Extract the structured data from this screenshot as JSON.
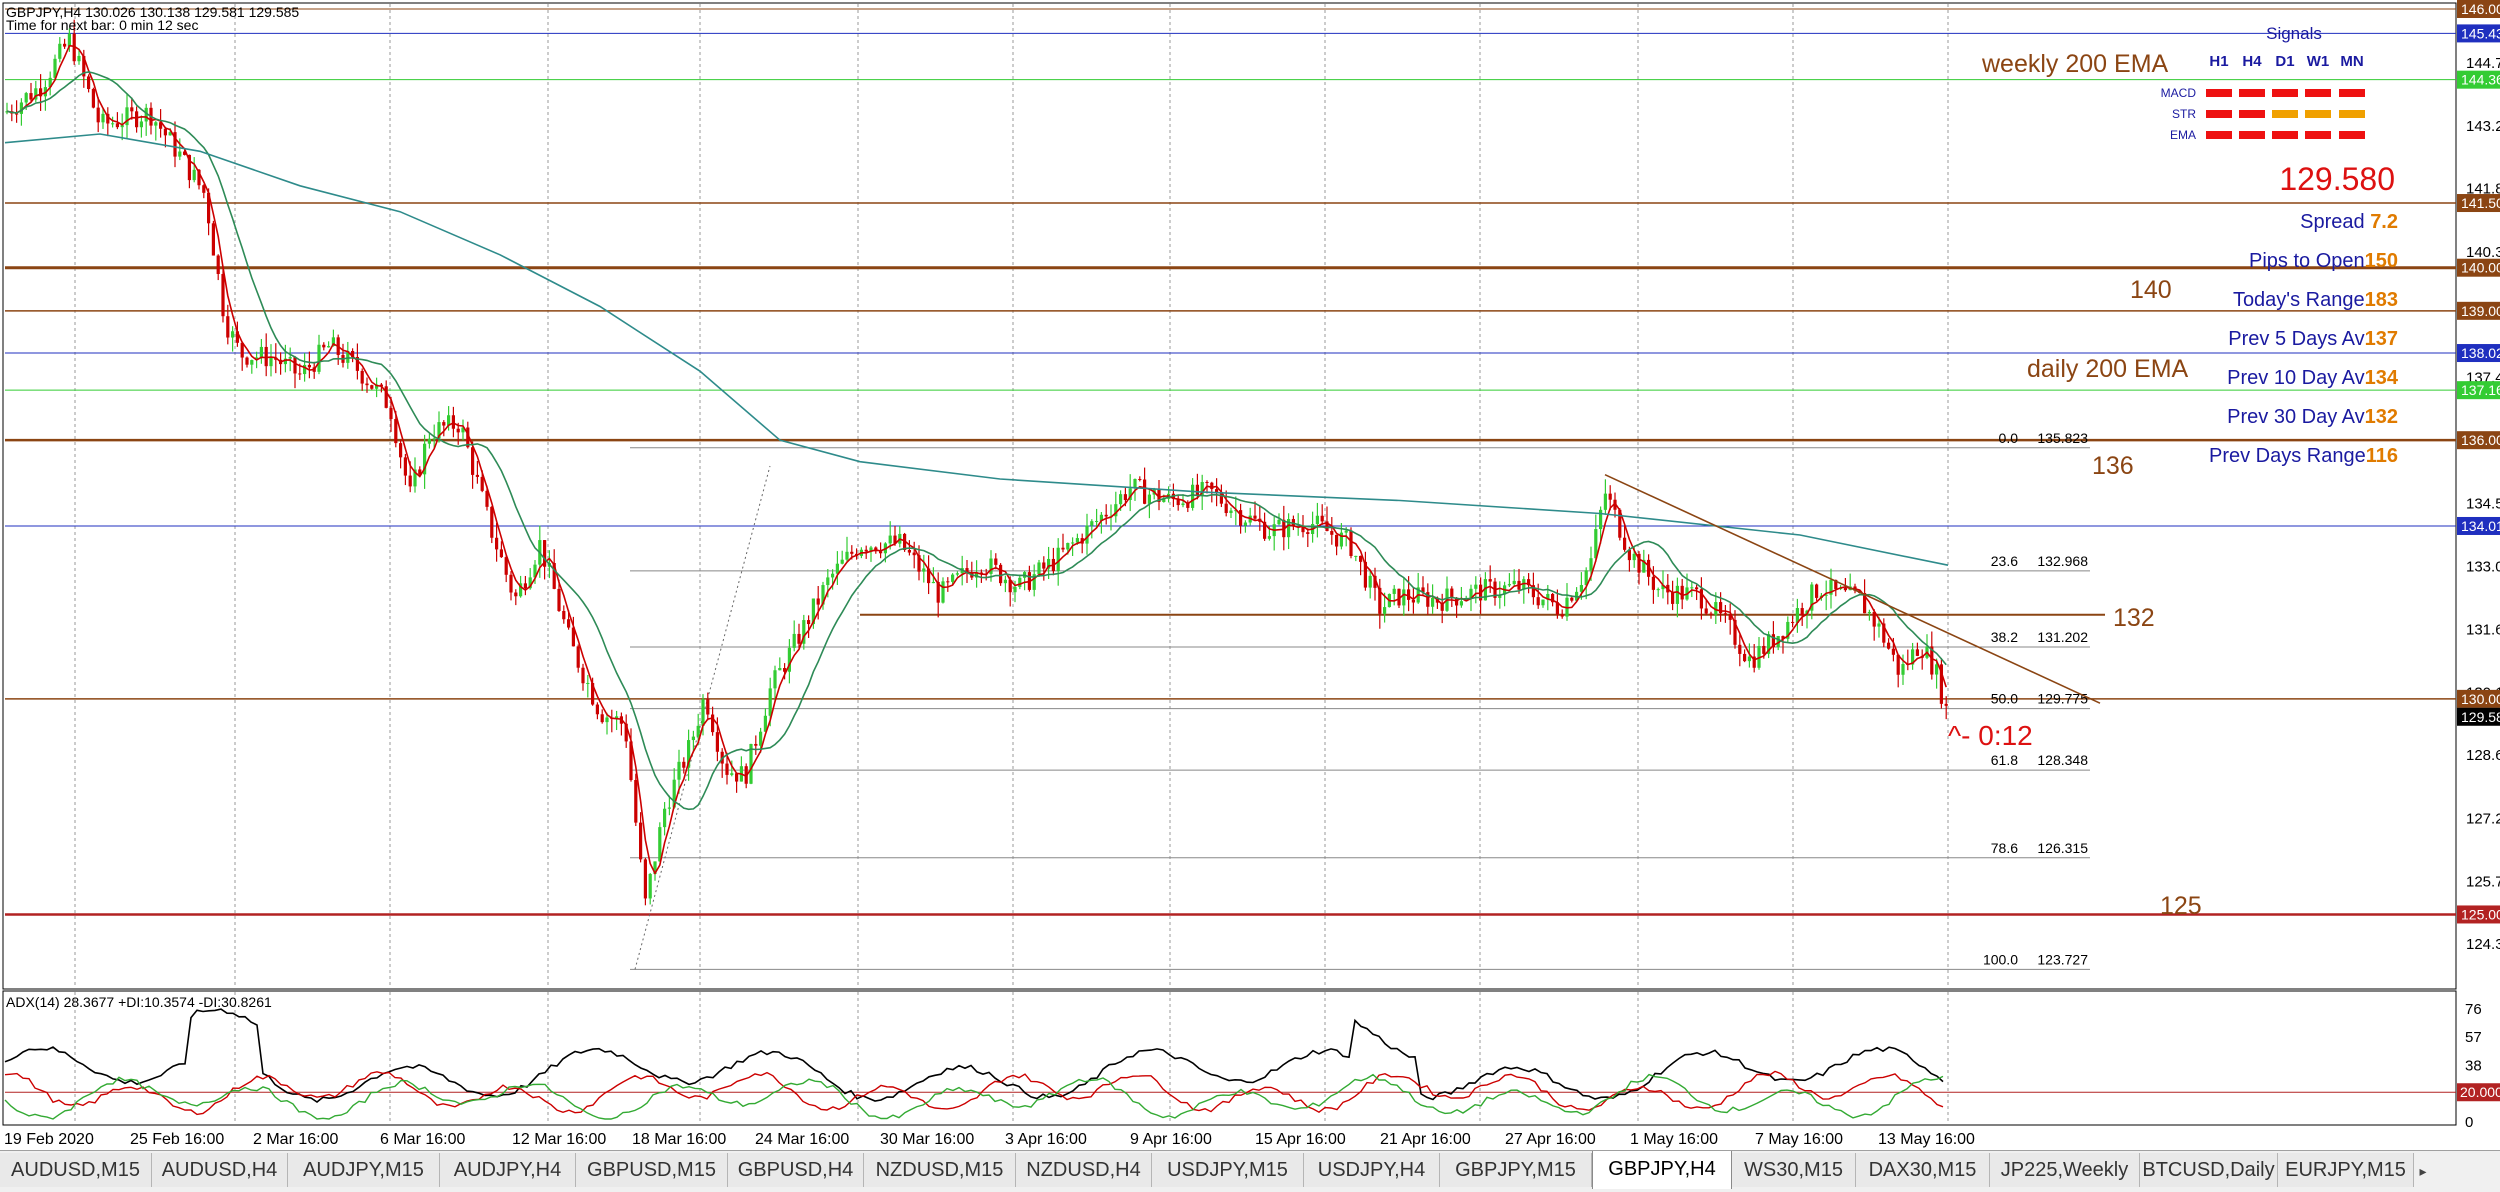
{
  "header": {
    "symbol_line": "GBPJPY,H4  130.026 130.138 129.581 129.585",
    "timer_line": "Time for next bar: 0 min 12 sec"
  },
  "annotations": {
    "weekly_ema": "weekly 200 EMA",
    "daily_ema": "daily 200 EMA",
    "lvl_140": "140",
    "lvl_136": "136",
    "lvl_132": "132",
    "lvl_125": "125",
    "countdown": "^- 0:12"
  },
  "signals": {
    "title": "Signals",
    "timeframes": [
      "H1",
      "H4",
      "D1",
      "W1",
      "MN"
    ],
    "rows": [
      {
        "label": "MACD",
        "states": [
          "red",
          "red",
          "red",
          "red",
          "red"
        ]
      },
      {
        "label": "STR",
        "states": [
          "red",
          "red",
          "orange",
          "orange",
          "orange"
        ]
      },
      {
        "label": "EMA",
        "states": [
          "red",
          "red",
          "red",
          "red",
          "red"
        ]
      }
    ],
    "price": "129.580",
    "stats": [
      {
        "label": "Spread ",
        "value": "7.2",
        "value_color": "#e07b00"
      },
      {
        "label": "Pips to Open",
        "value": "150",
        "value_color": "#e07b00"
      },
      {
        "label": "Today's Range",
        "value": "183",
        "value_color": "#e07b00"
      },
      {
        "label": "Prev 5 Days Av",
        "value": "137",
        "value_color": "#e07b00"
      },
      {
        "label": "Prev 10 Day Av",
        "value": "134",
        "value_color": "#e07b00"
      },
      {
        "label": "Prev 30 Day Av",
        "value": "132",
        "value_color": "#e07b00"
      },
      {
        "label": "Prev Days Range",
        "value": "116",
        "value_color": "#e07b00"
      }
    ]
  },
  "price_axis": {
    "ticks": [
      "144.745",
      "143.290",
      "141.835",
      "140.365",
      "137.455",
      "134.530",
      "133.075",
      "131.605",
      "130.150",
      "128.695",
      "127.225",
      "125.770",
      "124.315"
    ],
    "tags": [
      {
        "text": "146.000",
        "bg": "#8b4513",
        "fg": "#ffffff"
      },
      {
        "text": "145.434",
        "bg": "#1f2fbf",
        "fg": "#ffffff"
      },
      {
        "text": "144.361",
        "bg": "#33cc33",
        "fg": "#ffffff"
      },
      {
        "text": "141.500",
        "bg": "#8b4513",
        "fg": "#ffffff"
      },
      {
        "text": "140.000",
        "bg": "#8b4513",
        "fg": "#ffffff"
      },
      {
        "text": "139.000",
        "bg": "#8b4513",
        "fg": "#ffffff"
      },
      {
        "text": "138.021",
        "bg": "#1f2fbf",
        "fg": "#ffffff"
      },
      {
        "text": "137.160",
        "bg": "#33cc33",
        "fg": "#ffffff"
      },
      {
        "text": "136.000",
        "bg": "#8b4513",
        "fg": "#ffffff"
      },
      {
        "text": "134.010",
        "bg": "#1f2fbf",
        "fg": "#ffffff"
      },
      {
        "text": "130.000",
        "bg": "#8b4513",
        "fg": "#ffffff"
      },
      {
        "text": "129.585",
        "bg": "#000000",
        "fg": "#ffffff"
      },
      {
        "text": "125.000",
        "bg": "#b22222",
        "fg": "#ffffff"
      }
    ]
  },
  "fibonacci": [
    {
      "level": "0.0",
      "price": "135.823"
    },
    {
      "level": "23.6",
      "price": "132.968"
    },
    {
      "level": "38.2",
      "price": "131.202"
    },
    {
      "level": "50.0",
      "price": "129.775"
    },
    {
      "level": "61.8",
      "price": "128.348"
    },
    {
      "level": "78.6",
      "price": "126.315"
    },
    {
      "level": "100.0",
      "price": "123.727"
    }
  ],
  "adx": {
    "label": "ADX(14) 28.3677 +DI:10.3574 -DI:30.8261",
    "ticks": [
      "76",
      "57",
      "38",
      "0"
    ],
    "tag": "20.0000"
  },
  "time_axis": [
    "19 Feb 2020",
    "25 Feb 16:00",
    "2 Mar 16:00",
    "6 Mar 16:00",
    "12 Mar 16:00",
    "18 Mar 16:00",
    "24 Mar 16:00",
    "30 Mar 16:00",
    "3 Apr 16:00",
    "9 Apr 16:00",
    "15 Apr 16:00",
    "21 Apr 16:00",
    "27 Apr 16:00",
    "1 May 16:00",
    "7 May 16:00",
    "13 May 16:00"
  ],
  "tabs": [
    "AUDUSD,M15",
    "AUDUSD,H4",
    "AUDJPY,M15",
    "AUDJPY,H4",
    "GBPUSD,M15",
    "GBPUSD,H4",
    "NZDUSD,M15",
    "NZDUSD,H4",
    "USDJPY,M15",
    "USDJPY,H4",
    "GBPJPY,M15",
    "GBPJPY,H4",
    "WS30,M15",
    "DAX30,M15",
    "JP225,Weekly",
    "BTCUSD,Daily",
    "EURJPY,M15"
  ],
  "active_tab": "GBPJPY,H4",
  "colors": {
    "bull": "#33cc33",
    "bear": "#cc0000",
    "fast_ma": "#cc0000",
    "slow_ma": "#2e8b57",
    "ema200": "#2e8b8b",
    "hline": "#8b4513",
    "fib": "#777777",
    "annotation": "#8b4513"
  }
}
